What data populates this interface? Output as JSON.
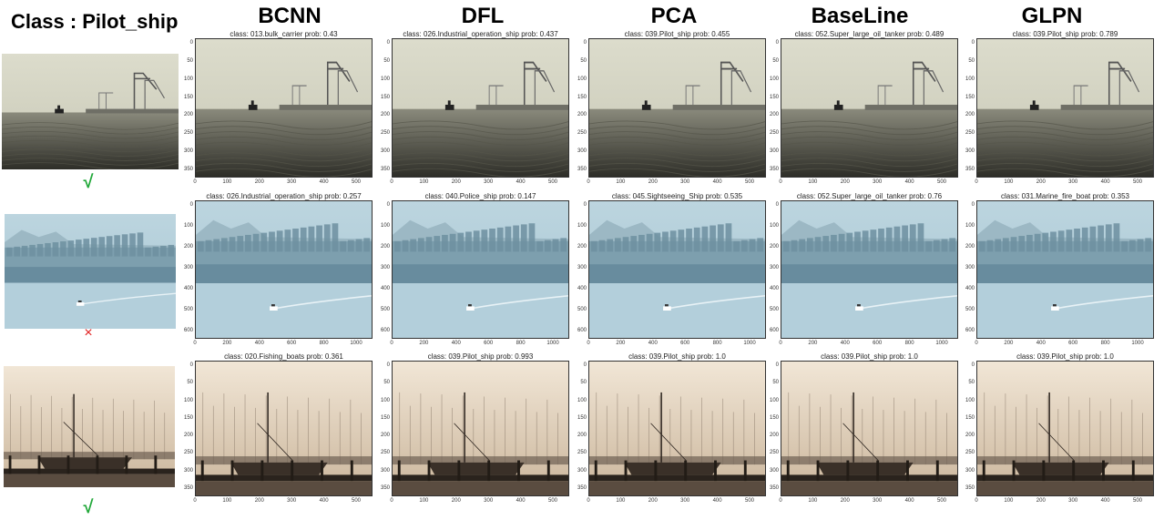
{
  "class_label": "Class : Pilot_ship",
  "methods": [
    "BCNN",
    "DFL",
    "PCA",
    "BaseLine",
    "GLPN"
  ],
  "rows": [
    {
      "scene": "harbor",
      "result_mark": "√",
      "result": "correct",
      "y_ticks": [
        "0",
        "50",
        "100",
        "150",
        "200",
        "250",
        "300",
        "350"
      ],
      "x_ticks": [
        "0",
        "100",
        "200",
        "300",
        "400",
        "500"
      ],
      "predictions": [
        "class: 013.bulk_carrier   prob: 0.43",
        "class: 026.Industrial_operation_ship   prob: 0.437",
        "class: 039.Pilot_ship   prob: 0.455",
        "class: 052.Super_large_oil_tanker   prob: 0.489",
        "class: 039.Pilot_ship   prob: 0.789"
      ]
    },
    {
      "scene": "city",
      "result_mark": "×",
      "result": "wrong",
      "y_ticks": [
        "0",
        "100",
        "200",
        "300",
        "400",
        "500",
        "600"
      ],
      "x_ticks": [
        "0",
        "200",
        "400",
        "600",
        "800",
        "1000"
      ],
      "predictions": [
        "class: 026.Industrial_operation_ship   prob: 0.257",
        "class: 040.Police_ship   prob: 0.147",
        "class: 045.Sightseeing_Ship   prob: 0.535",
        "class: 052.Super_large_oil_tanker   prob: 0.76",
        "class: 031.Marine_fire_boat   prob: 0.353"
      ]
    },
    {
      "scene": "fishing",
      "result_mark": "√",
      "result": "correct",
      "y_ticks": [
        "0",
        "50",
        "100",
        "150",
        "200",
        "250",
        "300",
        "350"
      ],
      "x_ticks": [
        "0",
        "100",
        "200",
        "300",
        "400",
        "500"
      ],
      "predictions": [
        "class: 020.Fishing_boats   prob: 0.361",
        "class: 039.Pilot_ship   prob: 0.993",
        "class: 039.Pilot_ship   prob: 1.0",
        "class: 039.Pilot_ship   prob: 1.0",
        "class: 039.Pilot_ship   prob: 1.0"
      ]
    }
  ]
}
